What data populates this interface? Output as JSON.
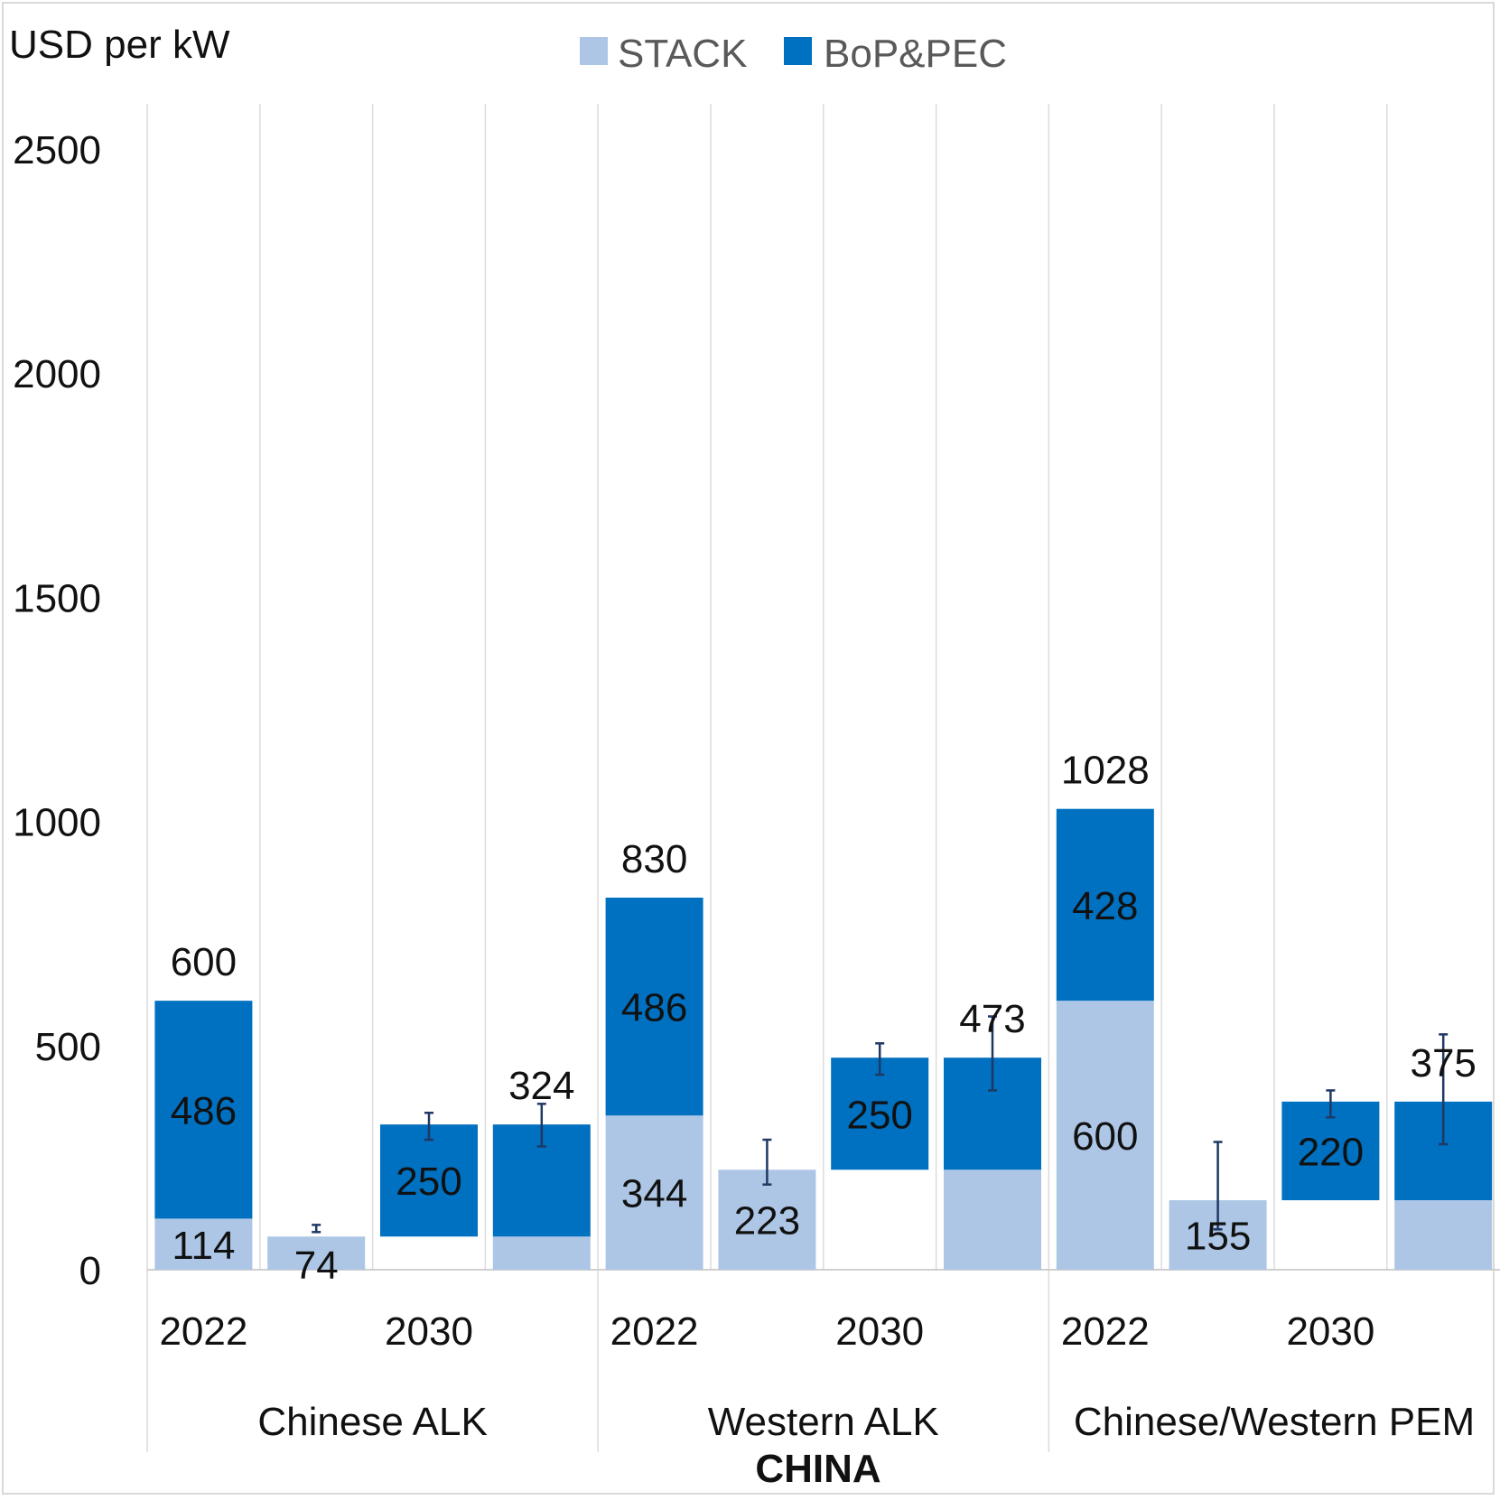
{
  "chart_data": {
    "type": "bar",
    "stacked": true,
    "ylabel": "USD per kW",
    "ylim": [
      0,
      2600
    ],
    "yticks": [
      0,
      500,
      1000,
      1500,
      2000,
      2500
    ],
    "grid": "vertical separators between bars",
    "legend_position": "top-center",
    "series": [
      {
        "name": "STACK",
        "color": "#adc6e5"
      },
      {
        "name": "BoP&PEC",
        "color": "#0070c0"
      }
    ],
    "groups": [
      {
        "name": "Chinese ALK",
        "year_labels": [
          "2022",
          "2030"
        ]
      },
      {
        "name": "Western ALK",
        "year_labels": [
          "2022",
          "2030"
        ]
      },
      {
        "name": "Chinese/Western PEM",
        "year_labels": [
          "2022",
          "2030"
        ]
      }
    ],
    "region_label": "CHINA",
    "bars": [
      {
        "group": 0,
        "stack": 114,
        "stack_label": "114",
        "bop_base": 114,
        "bop": 486,
        "bop_label": "486",
        "total_label": "600",
        "error": null
      },
      {
        "group": 0,
        "stack": 74,
        "stack_label": "74",
        "bop_base": 0,
        "bop": 0,
        "bop_label": "",
        "total_label": "",
        "error": [
          84,
          100
        ]
      },
      {
        "group": 0,
        "stack": 0,
        "stack_label": "",
        "bop_base": 74,
        "bop": 250,
        "bop_label": "250",
        "total_label": "",
        "error": [
          290,
          350
        ]
      },
      {
        "group": 0,
        "stack": 74,
        "stack_label": "",
        "bop_base": 74,
        "bop": 250,
        "bop_label": "",
        "total_label": "324",
        "error": [
          275,
          370
        ]
      },
      {
        "group": 1,
        "stack": 344,
        "stack_label": "344",
        "bop_base": 344,
        "bop": 486,
        "bop_label": "486",
        "total_label": "830",
        "error": null
      },
      {
        "group": 1,
        "stack": 223,
        "stack_label": "223",
        "bop_base": 0,
        "bop": 0,
        "bop_label": "",
        "total_label": "",
        "error": [
          190,
          290
        ]
      },
      {
        "group": 1,
        "stack": 0,
        "stack_label": "",
        "bop_base": 223,
        "bop": 250,
        "bop_label": "250",
        "total_label": "",
        "error": [
          435,
          505
        ]
      },
      {
        "group": 1,
        "stack": 223,
        "stack_label": "",
        "bop_base": 223,
        "bop": 250,
        "bop_label": "",
        "total_label": "473",
        "error": [
          400,
          565
        ]
      },
      {
        "group": 2,
        "stack": 600,
        "stack_label": "600",
        "bop_base": 600,
        "bop": 428,
        "bop_label": "428",
        "total_label": "1028",
        "error": null
      },
      {
        "group": 2,
        "stack": 155,
        "stack_label": "155",
        "bop_base": 0,
        "bop": 0,
        "bop_label": "",
        "total_label": "",
        "error": [
          90,
          285
        ]
      },
      {
        "group": 2,
        "stack": 0,
        "stack_label": "",
        "bop_base": 155,
        "bop": 220,
        "bop_label": "220",
        "total_label": "",
        "error": [
          340,
          400
        ]
      },
      {
        "group": 2,
        "stack": 155,
        "stack_label": "",
        "bop_base": 155,
        "bop": 220,
        "bop_label": "",
        "total_label": "375",
        "error": [
          280,
          525
        ]
      }
    ]
  }
}
